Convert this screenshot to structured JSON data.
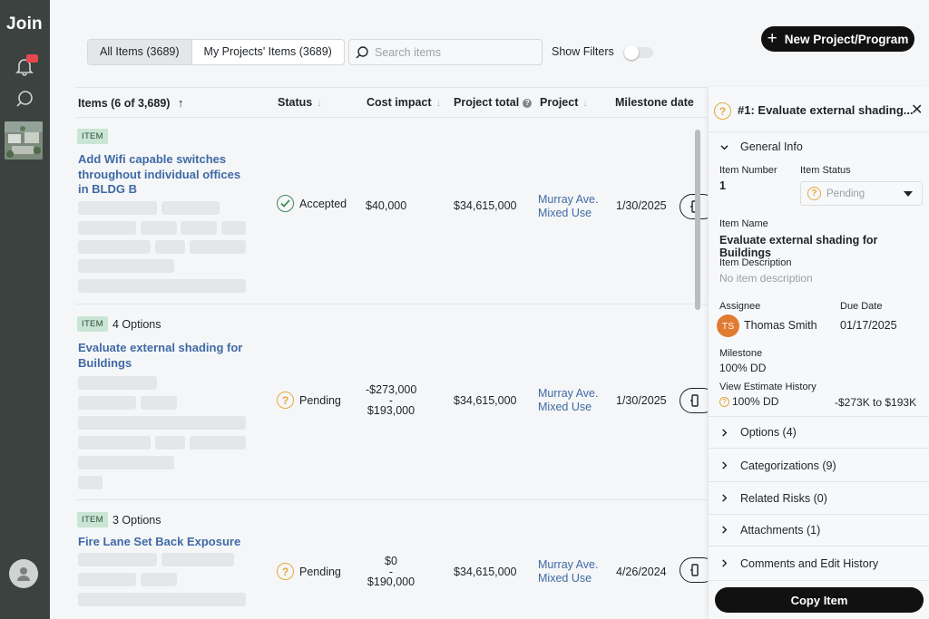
{
  "app": {
    "logo": "Join"
  },
  "toolbar": {
    "tab_all": "All Items (3689)",
    "tab_my": "My Projects' Items (3689)",
    "search_placeholder": "Search items",
    "show_filters": "Show Filters",
    "show_filters_on": false,
    "new_project": "New Project/Program"
  },
  "table": {
    "headers": {
      "items": "Items (6 of 3,689)",
      "status": "Status",
      "cost_impact": "Cost impact",
      "project_total": "Project total",
      "project": "Project",
      "milestone_date": "Milestone date"
    },
    "rows": [
      {
        "badge": "ITEM",
        "options": "",
        "title": "Add Wifi capable switches throughout individual offices in BLDG B",
        "status": "Accepted",
        "cost_line1": "$40,000",
        "cost_line2": "",
        "cost_line3": "",
        "project_total": "$34,615,000",
        "project_line1": "Murray Ave.",
        "project_line2": "Mixed Use",
        "milestone_date": "1/30/2025"
      },
      {
        "badge": "ITEM",
        "options": "4 Options",
        "title": "Evaluate external shading for Buildings",
        "status": "Pending",
        "cost_line1": "-$273,000",
        "cost_line2": "-",
        "cost_line3": "$193,000",
        "project_total": "$34,615,000",
        "project_line1": "Murray Ave.",
        "project_line2": "Mixed Use",
        "milestone_date": "1/30/2025"
      },
      {
        "badge": "ITEM",
        "options": "3 Options",
        "title": "Fire Lane Set Back Exposure",
        "status": "Pending",
        "cost_line1": "$0",
        "cost_line2": "-",
        "cost_line3": "$190,000",
        "project_total": "$34,615,000",
        "project_line1": "Murray Ave.",
        "project_line2": "Mixed Use",
        "milestone_date": "4/26/2024"
      }
    ]
  },
  "panel": {
    "title": "#1: Evaluate external shading...",
    "general_info": "General Info",
    "item_number_label": "Item Number",
    "item_number": "1",
    "item_status_label": "Item Status",
    "item_status": "Pending",
    "item_name_label": "Item Name",
    "item_name": "Evaluate external shading for Buildings",
    "item_description_label": "Item Description",
    "item_description": "No item description",
    "assignee_label": "Assignee",
    "assignee_initials": "TS",
    "assignee_name": "Thomas Smith",
    "due_date_label": "Due Date",
    "due_date": "01/17/2025",
    "milestone_label": "Milestone",
    "milestone": "100% DD",
    "estimate_history_label": "View Estimate History",
    "estimate_milestone": "100% DD",
    "estimate_range": "-$273K to $193K",
    "sections": [
      "Options (4)",
      "Categorizations (9)",
      "Related Risks (0)",
      "Attachments (1)",
      "Comments and Edit History"
    ],
    "copy_button": "Copy Item"
  },
  "colors": {
    "sidebar": "#3b4240",
    "link": "#3f6aa6",
    "pending": "#e5a93a",
    "accepted": "#3d8a55",
    "badge_bg": "#c9e6d4",
    "assignee_avatar": "#e07b32"
  }
}
